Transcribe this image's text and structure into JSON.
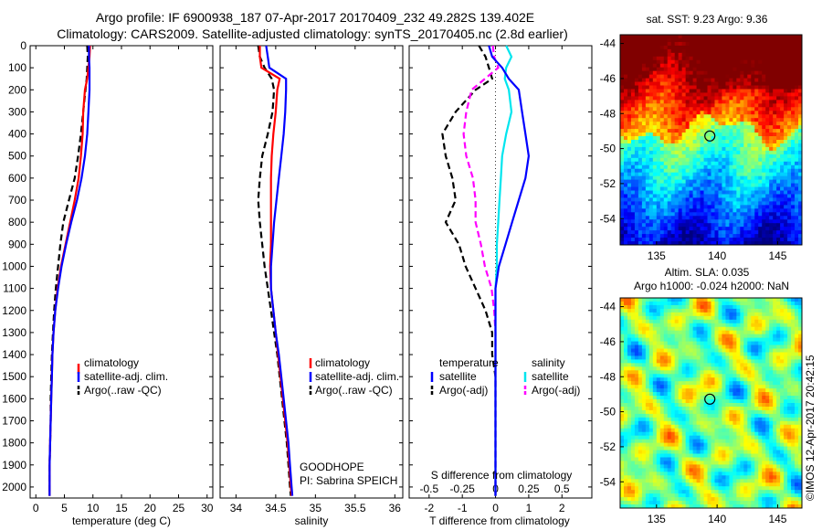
{
  "header": {
    "title_line1": "Argo profile: IF 6900938_187 07-Apr-2017 20170409_232 49.282S 139.402E",
    "title_line2": "Climatology: CARS2009. Satellite-adjusted climatology: synTS_20170405.nc (2.8d earlier)"
  },
  "colors": {
    "climatology": "#ff0000",
    "satellite": "#0000ff",
    "argo": "#000000",
    "salinity_satellite": "#00e5ee",
    "salinity_argo": "#ff00ff"
  },
  "chart_data": [
    {
      "type": "line",
      "xlabel": "temperature (deg C)",
      "ylabel": "",
      "xlim": [
        -1,
        31
      ],
      "ylim": [
        2050,
        0
      ],
      "xticks": [
        "0",
        "5",
        "10",
        "15",
        "20",
        "25",
        "30"
      ],
      "yticks": [
        "0",
        "100",
        "200",
        "300",
        "400",
        "500",
        "600",
        "700",
        "800",
        "900",
        "1000",
        "1100",
        "1200",
        "1300",
        "1400",
        "1500",
        "1600",
        "1700",
        "1800",
        "1900",
        "2000"
      ],
      "legend_position": "lower-center",
      "legend": [
        "climatology",
        "satellite-adj. clim.",
        "Argo(..raw -QC)"
      ],
      "series": [
        {
          "name": "climatology",
          "style": "solid",
          "depth": [
            0,
            50,
            100,
            150,
            200,
            300,
            400,
            500,
            600,
            700,
            800,
            900,
            1000,
            1100,
            1200,
            1300,
            1400,
            1500,
            1600,
            1700,
            1800,
            1900,
            2000,
            2040
          ],
          "values": [
            9.5,
            9.4,
            9.2,
            9.0,
            8.6,
            8.3,
            8.2,
            7.9,
            7.5,
            6.8,
            6.0,
            5.2,
            4.4,
            3.8,
            3.4,
            3.1,
            2.9,
            2.8,
            2.7,
            2.6,
            2.5,
            2.4,
            2.4,
            2.4
          ]
        },
        {
          "name": "satellite-adj. clim.",
          "style": "solid",
          "depth": [
            0,
            50,
            100,
            150,
            200,
            300,
            400,
            500,
            600,
            700,
            800,
            900,
            1000,
            1100,
            1200,
            1300,
            1400,
            1500,
            1600,
            1700,
            1800,
            1900,
            2000,
            2040
          ],
          "values": [
            9.3,
            9.3,
            9.4,
            9.4,
            9.4,
            9.2,
            9.0,
            8.6,
            8.0,
            7.2,
            6.2,
            5.3,
            4.5,
            3.9,
            3.4,
            3.1,
            2.9,
            2.8,
            2.7,
            2.6,
            2.5,
            2.4,
            2.4,
            2.4
          ]
        },
        {
          "name": "Argo(..raw -QC)",
          "style": "dashed",
          "depth": [
            0,
            50,
            100,
            150,
            200,
            300,
            400,
            500,
            600,
            700,
            800,
            900,
            1000,
            1100,
            1200,
            1300,
            1400,
            1500,
            1600,
            1700,
            1800,
            1900,
            2000,
            2040
          ],
          "values": [
            9.0,
            9.1,
            9.0,
            8.9,
            8.7,
            8.3,
            7.9,
            7.4,
            6.8,
            5.8,
            4.8,
            4.3,
            3.9,
            3.5,
            3.2,
            3.0,
            2.8,
            2.7,
            2.6,
            2.6,
            2.5,
            2.4,
            2.4,
            2.4
          ]
        }
      ]
    },
    {
      "type": "line",
      "xlabel": "salinity",
      "ylabel": "",
      "xlim": [
        33.8,
        36.1
      ],
      "ylim": [
        2050,
        0
      ],
      "xticks": [
        "34",
        "34.5",
        "35",
        "35.5",
        "36"
      ],
      "legend_position": "lower-center",
      "legend": [
        "climatology",
        "satellite-adj. clim.",
        "Argo(..raw -QC)"
      ],
      "annotation": [
        "GOODHOPE",
        "PI: Sabrina SPEICH"
      ],
      "series": [
        {
          "name": "climatology",
          "style": "solid",
          "depth": [
            0,
            50,
            100,
            150,
            200,
            300,
            400,
            500,
            600,
            700,
            800,
            900,
            1000,
            1100,
            1200,
            1300,
            1400,
            1500,
            1600,
            1700,
            1800,
            1900,
            2000,
            2040
          ],
          "values": [
            34.3,
            34.3,
            34.32,
            34.55,
            34.52,
            34.5,
            34.47,
            34.45,
            34.44,
            34.44,
            34.44,
            34.44,
            34.43,
            34.44,
            34.47,
            34.5,
            34.53,
            34.56,
            34.59,
            34.62,
            34.65,
            34.67,
            34.69,
            34.7
          ]
        },
        {
          "name": "satellite-adj. clim.",
          "style": "solid",
          "depth": [
            0,
            50,
            100,
            150,
            200,
            300,
            400,
            500,
            600,
            700,
            800,
            900,
            1000,
            1100,
            1200,
            1300,
            1400,
            1500,
            1600,
            1700,
            1800,
            1900,
            2000,
            2040
          ],
          "values": [
            34.38,
            34.4,
            34.42,
            34.63,
            34.63,
            34.62,
            34.6,
            34.57,
            34.54,
            34.51,
            34.48,
            34.46,
            34.44,
            34.44,
            34.47,
            34.5,
            34.54,
            34.57,
            34.6,
            34.63,
            34.66,
            34.68,
            34.7,
            34.71
          ]
        },
        {
          "name": "Argo(..raw -QC)",
          "style": "dashed",
          "depth": [
            0,
            50,
            100,
            150,
            200,
            300,
            400,
            500,
            600,
            700,
            800,
            900,
            1000,
            1100,
            1200,
            1300,
            1400,
            1500,
            1600,
            1700,
            1800,
            1900,
            2000,
            2040
          ],
          "values": [
            34.28,
            34.3,
            34.36,
            34.45,
            34.48,
            34.46,
            34.4,
            34.33,
            34.3,
            34.28,
            34.3,
            34.33,
            34.36,
            34.4,
            34.44,
            34.48,
            34.52,
            34.55,
            34.58,
            34.61,
            34.64,
            34.66,
            34.68,
            34.69
          ]
        }
      ]
    },
    {
      "type": "line",
      "xlabel": "T difference from climatology",
      "xlabel_top": "S difference from climatology",
      "ylabel": "",
      "xlim": [
        -2.6,
        2.9
      ],
      "ylim": [
        2050,
        0
      ],
      "xticks": [
        "-2",
        "-1",
        "0",
        "1",
        "2"
      ],
      "xticks_salinity": [
        "-0.5",
        "-0.25",
        "0",
        "0.25",
        "0.5"
      ],
      "legend_position": "lower-center",
      "legend": {
        "temperature_title": "temperature",
        "salinity_title": "salinity",
        "items": [
          "satellite",
          "Argo(-adj)",
          "satellite",
          "Argo(-adj)"
        ]
      },
      "series": [
        {
          "name": "temperature satellite",
          "style": "solid",
          "depth": [
            0,
            50,
            100,
            150,
            200,
            300,
            400,
            500,
            600,
            700,
            800,
            900,
            1000,
            1100,
            1200,
            1300,
            1400,
            1500,
            1600,
            1700,
            1800,
            1900,
            2000,
            2040
          ],
          "values": [
            -0.2,
            -0.1,
            0.2,
            0.4,
            0.7,
            0.8,
            0.9,
            1.0,
            0.9,
            0.7,
            0.5,
            0.3,
            0.1,
            0.0,
            0.0,
            0.0,
            0.0,
            0.0,
            0.0,
            0.0,
            0.0,
            0.0,
            0.0,
            0.0
          ]
        },
        {
          "name": "temperature Argo(-adj)",
          "style": "dashed",
          "depth": [
            0,
            50,
            100,
            150,
            200,
            300,
            400,
            500,
            600,
            700,
            800,
            900,
            1000,
            1100,
            1200,
            1300,
            1400,
            1500,
            1600,
            1700,
            1800,
            1900,
            2000,
            2040
          ],
          "values": [
            -0.5,
            -0.3,
            -0.2,
            -0.1,
            -0.6,
            -1.2,
            -1.6,
            -1.5,
            -1.3,
            -1.2,
            -1.5,
            -1.1,
            -0.9,
            -0.6,
            -0.3,
            -0.1,
            -0.1,
            0.0,
            0.0,
            0.0,
            0.0,
            0.0,
            0.0,
            0.0
          ]
        },
        {
          "name": "salinity satellite",
          "style": "solid",
          "depth": [
            0,
            50,
            100,
            150,
            200,
            300,
            400,
            500,
            600,
            700,
            800,
            900,
            1000,
            1100,
            1200,
            1300,
            1400,
            1500,
            1600,
            1700,
            1800,
            1900,
            2000,
            2040
          ],
          "values": [
            0.08,
            0.12,
            0.08,
            0.07,
            0.1,
            0.12,
            0.08,
            0.05,
            0.04,
            0.03,
            0.02,
            0.01,
            0.01,
            0.0,
            0.0,
            0.0,
            0.0,
            0.0,
            0.0,
            0.0,
            0.0,
            0.0,
            0.0,
            0.0
          ]
        },
        {
          "name": "salinity Argo(-adj)",
          "style": "dashed",
          "depth": [
            0,
            50,
            100,
            150,
            200,
            300,
            400,
            500,
            600,
            700,
            800,
            900,
            1000,
            1100,
            1200,
            1300,
            1400,
            1500,
            1600,
            1700,
            1800,
            1900,
            2000,
            2040
          ],
          "values": [
            -0.02,
            -0.01,
            0.02,
            -0.08,
            -0.18,
            -0.22,
            -0.24,
            -0.22,
            -0.17,
            -0.15,
            -0.15,
            -0.11,
            -0.08,
            -0.03,
            -0.01,
            0.0,
            0.0,
            0.0,
            0.0,
            0.0,
            0.0,
            0.0,
            0.0,
            0.0
          ]
        }
      ]
    },
    {
      "type": "heatmap",
      "title": "sat. SST: 9.23  Argo: 9.36",
      "xlim": [
        132,
        147
      ],
      "ylim": [
        -55.5,
        -43.5
      ],
      "xticks": [
        "135",
        "140",
        "145"
      ],
      "yticks": [
        "-44",
        "-46",
        "-48",
        "-50",
        "-52",
        "-54"
      ],
      "profile_location": [
        139.402,
        -49.282
      ]
    },
    {
      "type": "heatmap",
      "title": "Altim. SLA: 0.035",
      "title_line2": "Argo h1000: -0.024 h2000: NaN",
      "xlim": [
        132,
        147
      ],
      "ylim": [
        -55.5,
        -43.5
      ],
      "xticks": [
        "135",
        "140",
        "145"
      ],
      "yticks": [
        "-44",
        "-46",
        "-48",
        "-50",
        "-52",
        "-54"
      ],
      "profile_location": [
        139.402,
        -49.282
      ]
    }
  ],
  "footer": {
    "credit": "©IMOS 12-Apr-2017 20:42:15"
  }
}
